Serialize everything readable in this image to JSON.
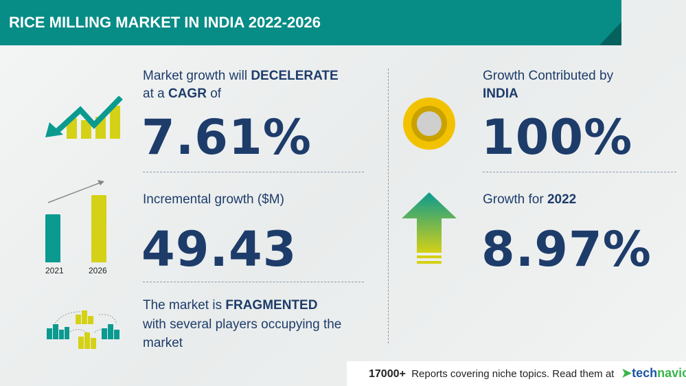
{
  "header": {
    "title": "RICE MILLING MARKET IN INDIA 2022-2026"
  },
  "cagr": {
    "line1_prefix": "Market growth will",
    "line1_bold": "DECELERATE",
    "line2_prefix": "at a",
    "line2_bold": "CAGR",
    "line2_suffix": "of",
    "value": "7.61%",
    "icon": "declining-trend-bars-icon"
  },
  "incremental": {
    "label": "Incremental growth ($M)",
    "value": "49.43",
    "icon": "growth-bar-icon",
    "years": [
      "2021",
      "2026"
    ]
  },
  "fragmented": {
    "prefix": "The market is",
    "bold": "FRAGMENTED",
    "line2": "with several players occupying the",
    "line3": "market",
    "icon": "buildings-network-icon"
  },
  "contribution": {
    "line1": "Growth Contributed by",
    "line2": "INDIA",
    "value": "100%",
    "icon": "donut-icon"
  },
  "yoy": {
    "prefix": "Growth for",
    "year": "2022",
    "value": "8.97%",
    "icon": "up-arrow-icon"
  },
  "footer": {
    "count": "17000+",
    "text": "Reports covering niche topics. Read them at",
    "logo_part1": "tech",
    "logo_part2": "navio"
  },
  "colors": {
    "teal": "#078c86",
    "yellow": "#d4d116",
    "navy": "#1d3c6a"
  }
}
